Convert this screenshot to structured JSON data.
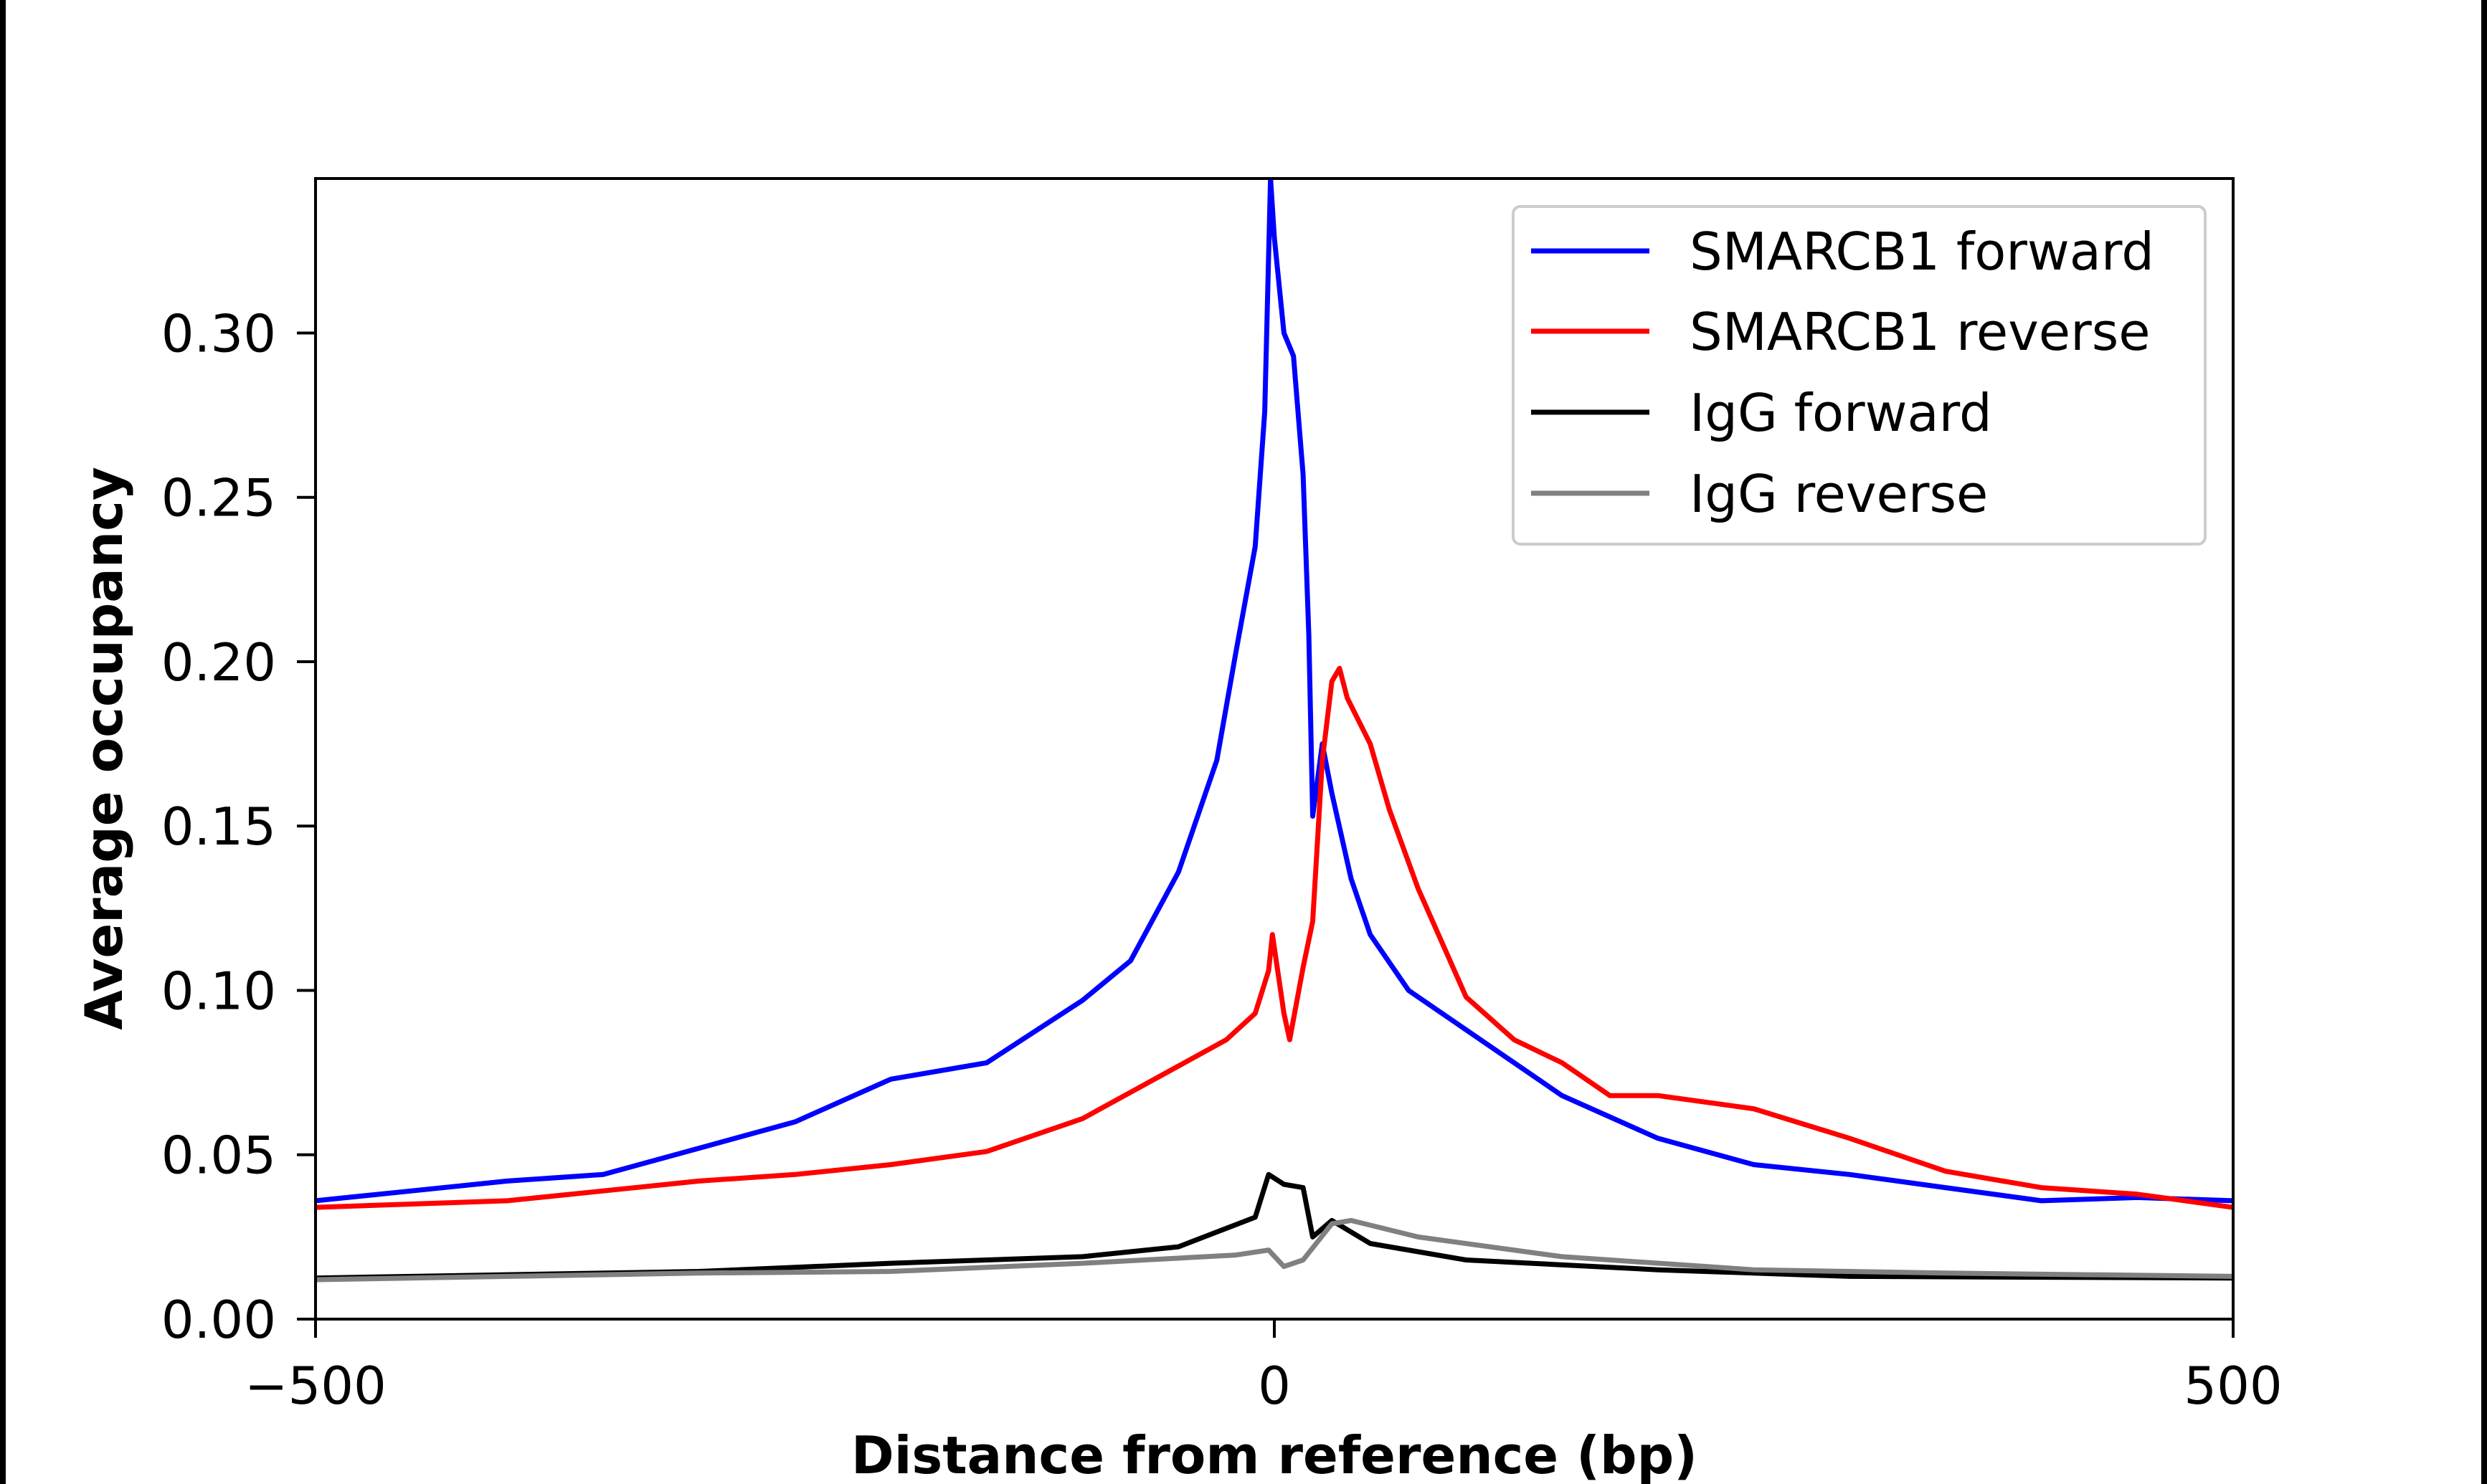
{
  "chart_data": {
    "type": "line",
    "title": "",
    "xlabel": "Distance from reference (bp)",
    "ylabel": "Average occupancy",
    "xlim": [
      -500,
      500
    ],
    "ylim": [
      0,
      0.347
    ],
    "xticks": [
      -500,
      0,
      500
    ],
    "xtick_labels": [
      "−500",
      "0",
      "500"
    ],
    "yticks": [
      0,
      0.05,
      0.1,
      0.15,
      0.2,
      0.25,
      0.3
    ],
    "ytick_labels": [
      "0.00",
      "0.05",
      "0.10",
      "0.15",
      "0.20",
      "0.25",
      "0.30"
    ],
    "grid": false,
    "legend_position": "top-right",
    "series": [
      {
        "name": "SMARCB1 forward",
        "color": "#0000ff",
        "x": [
          -500,
          -450,
          -400,
          -350,
          -300,
          -250,
          -200,
          -150,
          -100,
          -75,
          -50,
          -30,
          -20,
          -10,
          -5,
          -2,
          0,
          5,
          10,
          15,
          18,
          20,
          25,
          30,
          40,
          50,
          70,
          100,
          150,
          200,
          250,
          300,
          350,
          400,
          450,
          500
        ],
        "y": [
          0.036,
          0.039,
          0.042,
          0.044,
          0.052,
          0.06,
          0.073,
          0.078,
          0.097,
          0.109,
          0.136,
          0.17,
          0.203,
          0.235,
          0.276,
          0.347,
          0.329,
          0.3,
          0.293,
          0.257,
          0.208,
          0.153,
          0.175,
          0.16,
          0.134,
          0.117,
          0.1,
          0.088,
          0.068,
          0.055,
          0.047,
          0.044,
          0.04,
          0.036,
          0.037,
          0.036
        ]
      },
      {
        "name": "SMARCB1 reverse",
        "color": "#ff0000",
        "x": [
          -500,
          -450,
          -400,
          -350,
          -300,
          -250,
          -200,
          -150,
          -100,
          -50,
          -25,
          -10,
          -3,
          -1,
          5,
          8,
          15,
          20,
          25,
          30,
          34,
          38,
          50,
          60,
          75,
          100,
          125,
          150,
          175,
          200,
          250,
          300,
          350,
          400,
          450,
          500
        ],
        "y": [
          0.034,
          0.035,
          0.036,
          0.039,
          0.042,
          0.044,
          0.047,
          0.051,
          0.061,
          0.077,
          0.085,
          0.093,
          0.106,
          0.117,
          0.093,
          0.085,
          0.107,
          0.121,
          0.17,
          0.194,
          0.198,
          0.189,
          0.175,
          0.155,
          0.131,
          0.098,
          0.085,
          0.078,
          0.068,
          0.068,
          0.064,
          0.055,
          0.045,
          0.04,
          0.038,
          0.034
        ]
      },
      {
        "name": "IgG forward",
        "color": "#000000",
        "x": [
          -500,
          -300,
          -200,
          -100,
          -50,
          -10,
          -3,
          5,
          15,
          20,
          30,
          50,
          100,
          200,
          300,
          500
        ],
        "y": [
          0.0125,
          0.0145,
          0.017,
          0.019,
          0.022,
          0.031,
          0.044,
          0.041,
          0.04,
          0.025,
          0.03,
          0.023,
          0.018,
          0.015,
          0.013,
          0.0125
        ]
      },
      {
        "name": "IgG reverse",
        "color": "#808080",
        "x": [
          -500,
          -300,
          -200,
          -100,
          -20,
          -3,
          5,
          15,
          30,
          40,
          75,
          150,
          250,
          350,
          500
        ],
        "y": [
          0.012,
          0.014,
          0.0145,
          0.017,
          0.0195,
          0.021,
          0.016,
          0.018,
          0.029,
          0.03,
          0.025,
          0.019,
          0.015,
          0.014,
          0.013
        ]
      }
    ]
  }
}
